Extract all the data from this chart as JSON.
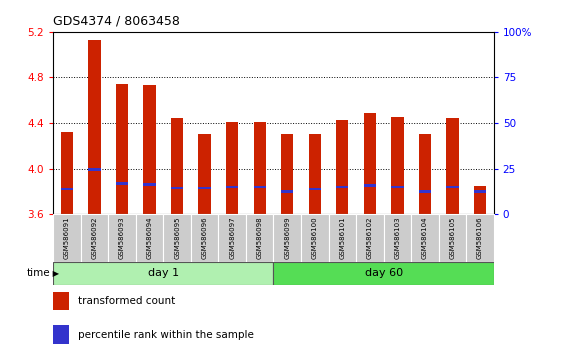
{
  "title": "GDS4374 / 8063458",
  "samples": [
    "GSM586091",
    "GSM586092",
    "GSM586093",
    "GSM586094",
    "GSM586095",
    "GSM586096",
    "GSM586097",
    "GSM586098",
    "GSM586099",
    "GSM586100",
    "GSM586101",
    "GSM586102",
    "GSM586103",
    "GSM586104",
    "GSM586105",
    "GSM586106"
  ],
  "bar_heights": [
    4.32,
    5.13,
    4.74,
    4.73,
    4.44,
    4.3,
    4.41,
    4.41,
    4.3,
    4.3,
    4.43,
    4.49,
    4.45,
    4.3,
    4.44,
    3.85
  ],
  "blue_positions": [
    3.82,
    3.99,
    3.87,
    3.86,
    3.83,
    3.83,
    3.84,
    3.84,
    3.8,
    3.82,
    3.84,
    3.85,
    3.84,
    3.8,
    3.84,
    3.8
  ],
  "bar_color": "#cc2200",
  "blue_color": "#3333cc",
  "ymin": 3.6,
  "ymax": 5.2,
  "yticks": [
    3.6,
    4.0,
    4.4,
    4.8,
    5.2
  ],
  "ytick_labels": [
    "3.6",
    "4.0",
    "4.4",
    "4.8",
    "5.2"
  ],
  "right_yticks": [
    0,
    25,
    50,
    75,
    100
  ],
  "right_ytick_labels": [
    "0",
    "25",
    "50",
    "75",
    "100%"
  ],
  "day1_count": 8,
  "day60_count": 8,
  "day1_label": "day 1",
  "day60_label": "day 60",
  "time_label": "time",
  "legend_red": "transformed count",
  "legend_blue": "percentile rank within the sample",
  "bar_width": 0.45,
  "tick_label_bg": "#cccccc",
  "day1_bg": "#b0f0b0",
  "day60_bg": "#55dd55"
}
